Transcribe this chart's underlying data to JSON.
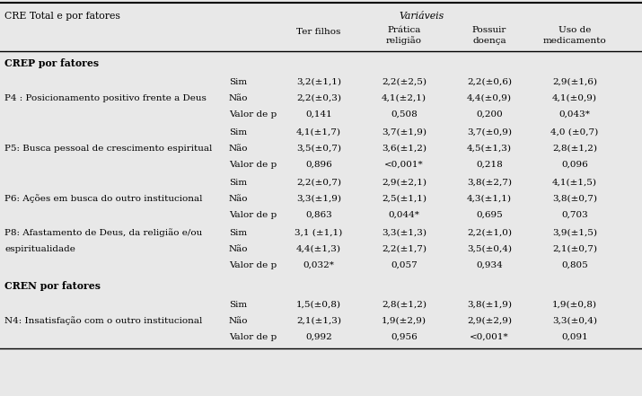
{
  "bg_color": "#e8e8e8",
  "text_color": "#000000",
  "font_size": 7.5,
  "bold_font_size": 7.8,
  "header1_left": "CRE Total e por fatores",
  "header1_center": "Variáveis",
  "col_headers": [
    "Ter filhos",
    "Prática\nreligião",
    "Possuir\ndoença",
    "Uso de\nmedicamento"
  ],
  "sections": [
    {
      "section_title": "CREP por fatores",
      "rows": [
        {
          "label": "P4 : Posicionamento positivo frente a Deus",
          "label2": null,
          "sub_rows": [
            [
              "Sim",
              "3,2(±1,1)",
              "2,2(±2,5)",
              "2,2(±0,6)",
              "2,9(±1,6)"
            ],
            [
              "Não",
              "2,2(±0,3)",
              "4,1(±2,1)",
              "4,4(±0,9)",
              "4,1(±0,9)"
            ],
            [
              "Valor de p",
              "0,141",
              "0,508",
              "0,200",
              "0,043*"
            ]
          ]
        },
        {
          "label": "P5: Busca pessoal de crescimento espiritual",
          "label2": null,
          "sub_rows": [
            [
              "Sim",
              "4,1(±1,7)",
              "3,7(±1,9)",
              "3,7(±0,9)",
              "4,0 (±0,7)"
            ],
            [
              "Não",
              "3,5(±0,7)",
              "3,6(±1,2)",
              "4,5(±1,3)",
              "2,8(±1,2)"
            ],
            [
              "Valor de p",
              "0,896",
              "<0,001*",
              "0,218",
              "0,096"
            ]
          ]
        },
        {
          "label": "P6: Ações em busca do outro institucional",
          "label2": null,
          "sub_rows": [
            [
              "Sim",
              "2,2(±0,7)",
              "2,9(±2,1)",
              "3,8(±2,7)",
              "4,1(±1,5)"
            ],
            [
              "Não",
              "3,3(±1,9)",
              "2,5(±1,1)",
              "4,3(±1,1)",
              "3,8(±0,7)"
            ],
            [
              "Valor de p",
              "0,863",
              "0,044*",
              "0,695",
              "0,703"
            ]
          ]
        },
        {
          "label": "P8: Afastamento de Deus, da religião e/ou",
          "label2": "espiritualidade",
          "sub_rows": [
            [
              "Sim",
              "3,1 (±1,1)",
              "3,3(±1,3)",
              "2,2(±1,0)",
              "3,9(±1,5)"
            ],
            [
              "Não",
              "4,4(±1,3)",
              "2,2(±1,7)",
              "3,5(±0,4)",
              "2,1(±0,7)"
            ],
            [
              "Valor de p",
              "0,032*",
              "0,057",
              "0,934",
              "0,805"
            ]
          ]
        }
      ]
    },
    {
      "section_title": "CREN por fatores",
      "rows": [
        {
          "label": "N4: Insatisfação com o outro institucional",
          "label2": null,
          "sub_rows": [
            [
              "Sim",
              "1,5(±0,8)",
              "2,8(±1,2)",
              "3,8(±1,9)",
              "1,9(±0,8)"
            ],
            [
              "Não",
              "2,1(±1,3)",
              "1,9(±2,9)",
              "2,9(±2,9)",
              "3,3(±0,4)"
            ],
            [
              "Valor de p",
              "0,992",
              "0,956",
              "<0,001*",
              "0,091"
            ]
          ]
        }
      ]
    }
  ]
}
